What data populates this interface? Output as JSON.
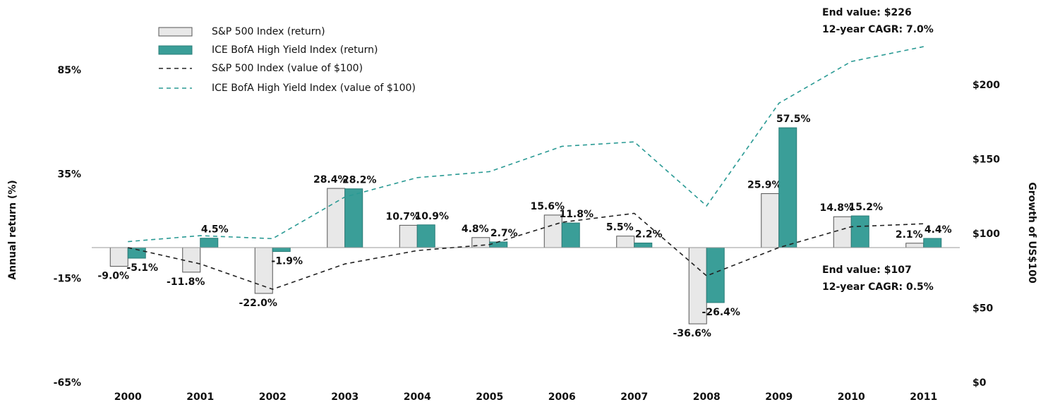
{
  "chart_data": {
    "type": "bar",
    "categories": [
      "2000",
      "2001",
      "2002",
      "2003",
      "2004",
      "2005",
      "2006",
      "2007",
      "2008",
      "2009",
      "2010",
      "2011"
    ],
    "series": [
      {
        "name": "S&P 500 Index (return)",
        "type": "bar",
        "color": "#e8e8e8",
        "stroke": "#555555",
        "values": [
          -9.0,
          -11.8,
          -22.0,
          28.4,
          10.7,
          4.8,
          15.6,
          5.5,
          -36.6,
          25.9,
          14.8,
          2.1
        ],
        "value_labels": [
          "-9.0%",
          "-11.8%",
          "-22.0%",
          "28.4%",
          "10.7%",
          "4.8%",
          "15.6%",
          "5.5%",
          "-36.6%",
          "25.9%",
          "14.8%",
          "2.1%"
        ]
      },
      {
        "name": "ICE BofA High Yield Index (return)",
        "type": "bar",
        "color": "#3a9e98",
        "stroke": "#2a7d78",
        "values": [
          -5.1,
          4.5,
          -1.9,
          28.2,
          10.9,
          2.7,
          11.8,
          2.2,
          -26.4,
          57.5,
          15.2,
          4.4
        ],
        "value_labels": [
          "-5.1%",
          "4.5%",
          "-1.9%",
          "28.2%",
          "10.9%",
          "2.7%",
          "11.8%",
          "2.2%",
          "-26.4%",
          "57.5%",
          "15.2%",
          "4.4%"
        ]
      },
      {
        "name": "S&P 500 Index (value of $100)",
        "type": "line",
        "axis": "y2",
        "color": "#222222",
        "values": [
          91,
          80,
          63,
          80,
          89,
          93,
          108,
          114,
          72,
          91,
          105,
          107
        ]
      },
      {
        "name": "ICE BofA High Yield Index (value of $100)",
        "type": "line",
        "axis": "y2",
        "color": "#2a9a94",
        "values": [
          95,
          99,
          97,
          125,
          138,
          142,
          159,
          162,
          119,
          188,
          216,
          226
        ]
      }
    ],
    "ylabel": "Annual return (%)",
    "y2label": "Growth of US$100",
    "ylim": [
      -65,
      110
    ],
    "yticks": [
      {
        "value": -65,
        "label": "-65%"
      },
      {
        "value": -15,
        "label": "-15%"
      },
      {
        "value": 35,
        "label": "35%"
      },
      {
        "value": 85,
        "label": "85%"
      }
    ],
    "y2lim": [
      0,
      245
    ],
    "y2ticks": [
      {
        "value": 0,
        "label": "$0"
      },
      {
        "value": 50,
        "label": "$50"
      },
      {
        "value": 100,
        "label": "$100"
      },
      {
        "value": 150,
        "label": "$150"
      },
      {
        "value": 200,
        "label": "$200"
      }
    ],
    "annotations": [
      "End value: $226",
      "12-year CAGR: 7.0%",
      "End value: $107",
      "12-year CAGR: 0.5%"
    ],
    "legend": "upper left"
  }
}
